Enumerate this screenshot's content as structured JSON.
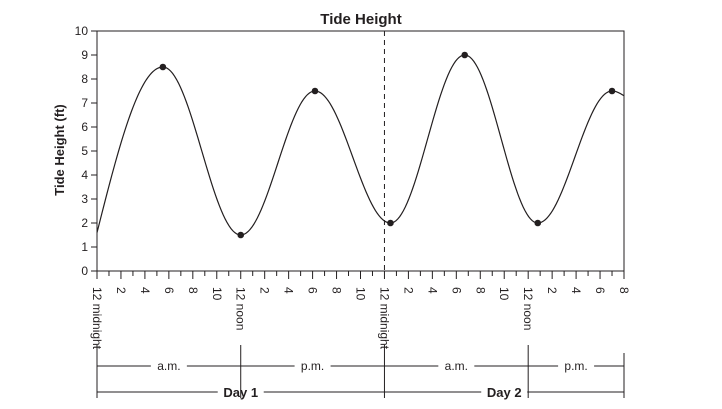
{
  "chart_data": {
    "type": "line",
    "title": "Tide Height",
    "ylabel": "Tide Height (ft)",
    "xlabel": "",
    "ylim": [
      0,
      10
    ],
    "y_ticks": [
      "0",
      "1",
      "2",
      "3",
      "4",
      "5",
      "6",
      "7",
      "8",
      "9",
      "10"
    ],
    "x_range_hours": [
      0,
      44
    ],
    "x_tick_labels": [
      {
        "hour": 0,
        "label": "12 midnight"
      },
      {
        "hour": 2,
        "label": "2"
      },
      {
        "hour": 4,
        "label": "4"
      },
      {
        "hour": 6,
        "label": "6"
      },
      {
        "hour": 8,
        "label": "8"
      },
      {
        "hour": 10,
        "label": "10"
      },
      {
        "hour": 12,
        "label": "12 noon"
      },
      {
        "hour": 14,
        "label": "2"
      },
      {
        "hour": 16,
        "label": "4"
      },
      {
        "hour": 18,
        "label": "6"
      },
      {
        "hour": 20,
        "label": "8"
      },
      {
        "hour": 22,
        "label": "10"
      },
      {
        "hour": 24,
        "label": "12 midnight"
      },
      {
        "hour": 26,
        "label": "2"
      },
      {
        "hour": 28,
        "label": "4"
      },
      {
        "hour": 30,
        "label": "6"
      },
      {
        "hour": 32,
        "label": "8"
      },
      {
        "hour": 34,
        "label": "10"
      },
      {
        "hour": 36,
        "label": "12 noon"
      },
      {
        "hour": 38,
        "label": "2"
      },
      {
        "hour": 40,
        "label": "4"
      },
      {
        "hour": 42,
        "label": "6"
      },
      {
        "hour": 44,
        "label": "8"
      }
    ],
    "grid": false,
    "divider_at_hour": 24,
    "series": [
      {
        "marked_points": [
          {
            "x": 5.5,
            "y": 8.5
          },
          {
            "x": 12.0,
            "y": 1.5
          },
          {
            "x": 18.2,
            "y": 7.5
          },
          {
            "x": 24.5,
            "y": 2.0
          },
          {
            "x": 30.7,
            "y": 9.0
          },
          {
            "x": 36.8,
            "y": 2.0
          },
          {
            "x": 43.0,
            "y": 7.5
          }
        ],
        "start": {
          "x": 0,
          "y": 1.6
        },
        "end": {
          "x": 44,
          "y": 7.3
        }
      }
    ],
    "periods": [
      {
        "label": "a.m.",
        "from": 0,
        "to": 12
      },
      {
        "label": "p.m.",
        "from": 12,
        "to": 24
      },
      {
        "label": "a.m.",
        "from": 24,
        "to": 36
      },
      {
        "label": "p.m.",
        "from": 36,
        "to": 44
      }
    ],
    "days": [
      {
        "label": "Day 1",
        "from": 0,
        "to": 24
      },
      {
        "label": "Day 2",
        "from": 24,
        "to": 44
      }
    ],
    "colors": {
      "ink": "#231f20",
      "background": "#ffffff"
    }
  }
}
